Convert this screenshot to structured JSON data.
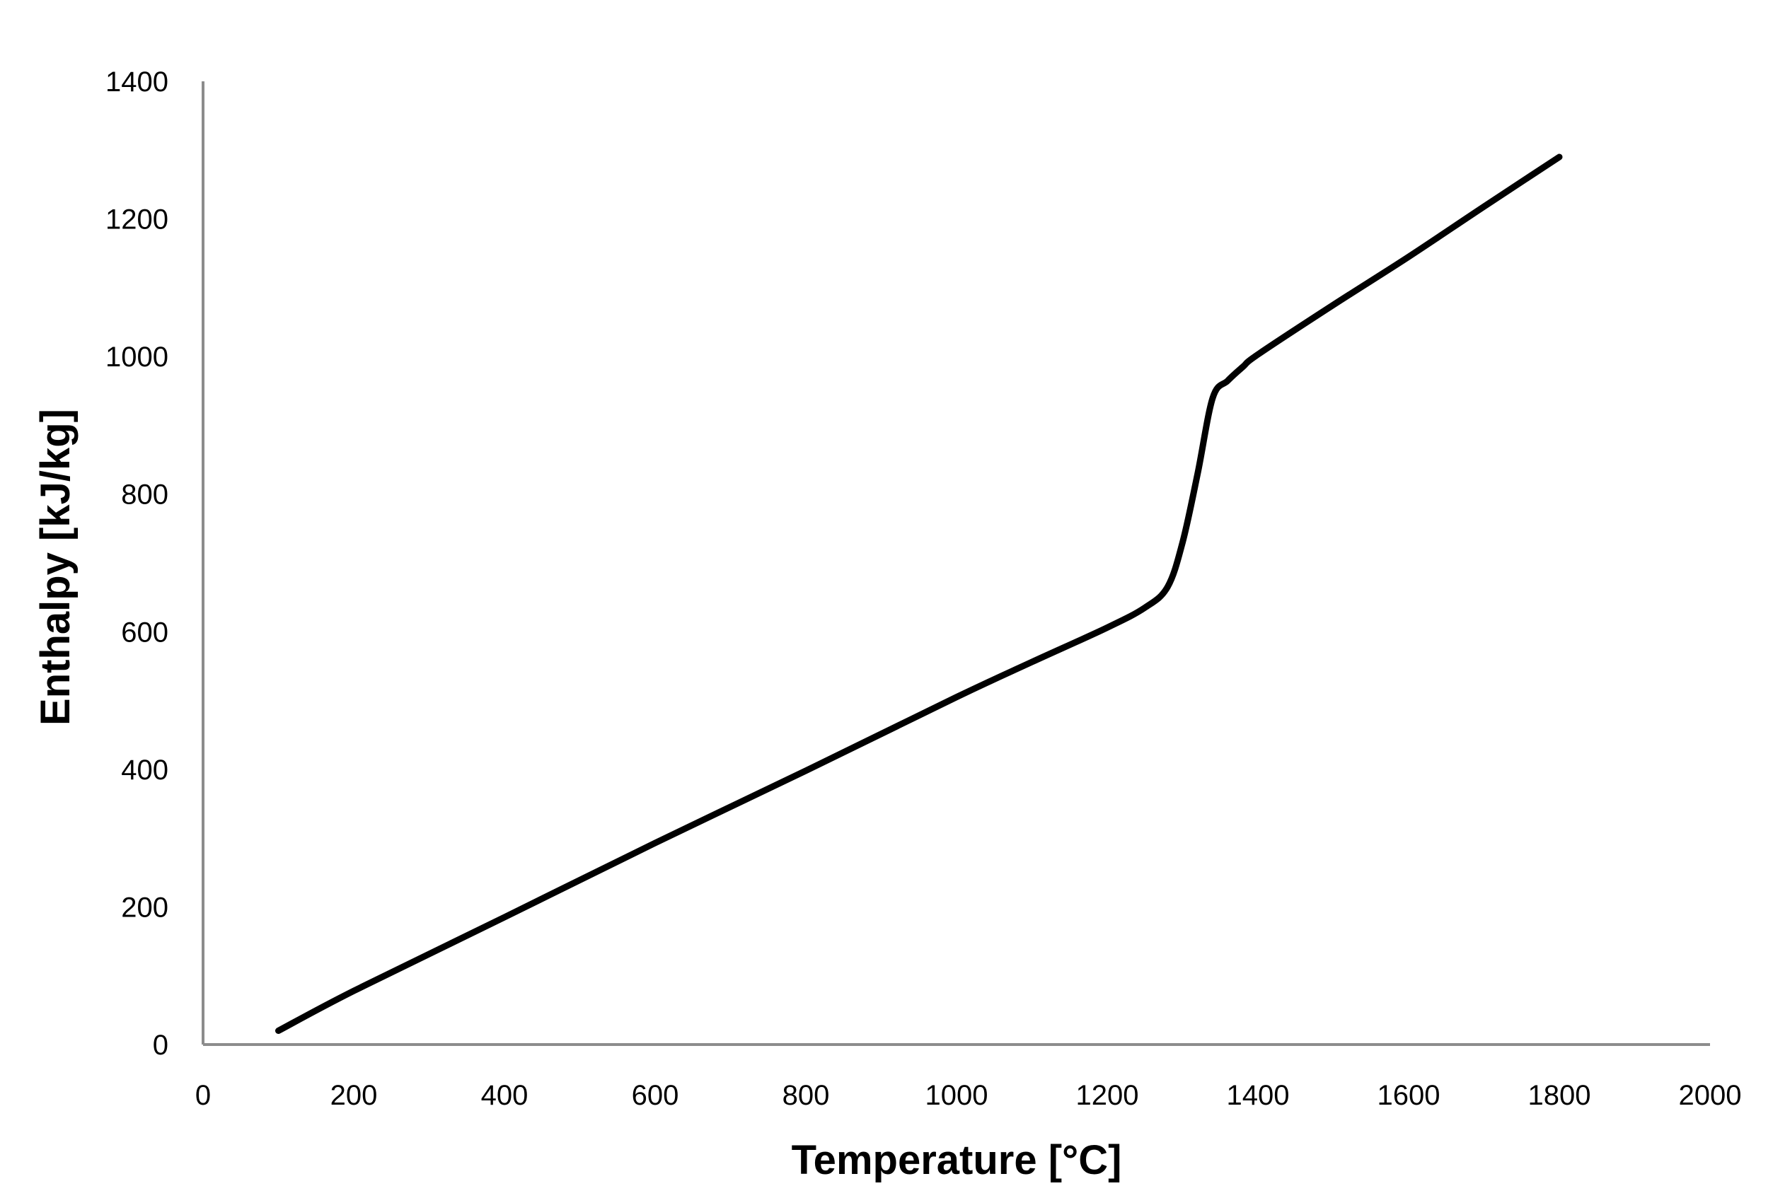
{
  "chart_data": {
    "type": "line",
    "xlabel": "Temperature [°C]",
    "ylabel": "Enthalpy  [kJ/kg]",
    "xlim": [
      0,
      2000
    ],
    "ylim": [
      0,
      1400
    ],
    "xticks": [
      "0",
      "200",
      "400",
      "600",
      "800",
      "1000",
      "1200",
      "1400",
      "1600",
      "1800",
      "2000"
    ],
    "yticks": [
      "0",
      "200",
      "400",
      "600",
      "800",
      "1000",
      "1200",
      "1400"
    ],
    "grid": false,
    "legend": "none",
    "colors": {
      "line": "#000000",
      "axis": "#8c8c8c"
    },
    "series": [
      {
        "x": [
          100,
          200,
          400,
          600,
          800,
          1000,
          1100,
          1200,
          1250,
          1280,
          1300,
          1320,
          1340,
          1360,
          1380,
          1400,
          1500,
          1600,
          1700,
          1800
        ],
        "y": [
          20,
          78,
          185,
          293,
          398,
          505,
          556,
          606,
          635,
          665,
          730,
          830,
          940,
          965,
          985,
          1003,
          1075,
          1145,
          1218,
          1290
        ]
      }
    ]
  }
}
